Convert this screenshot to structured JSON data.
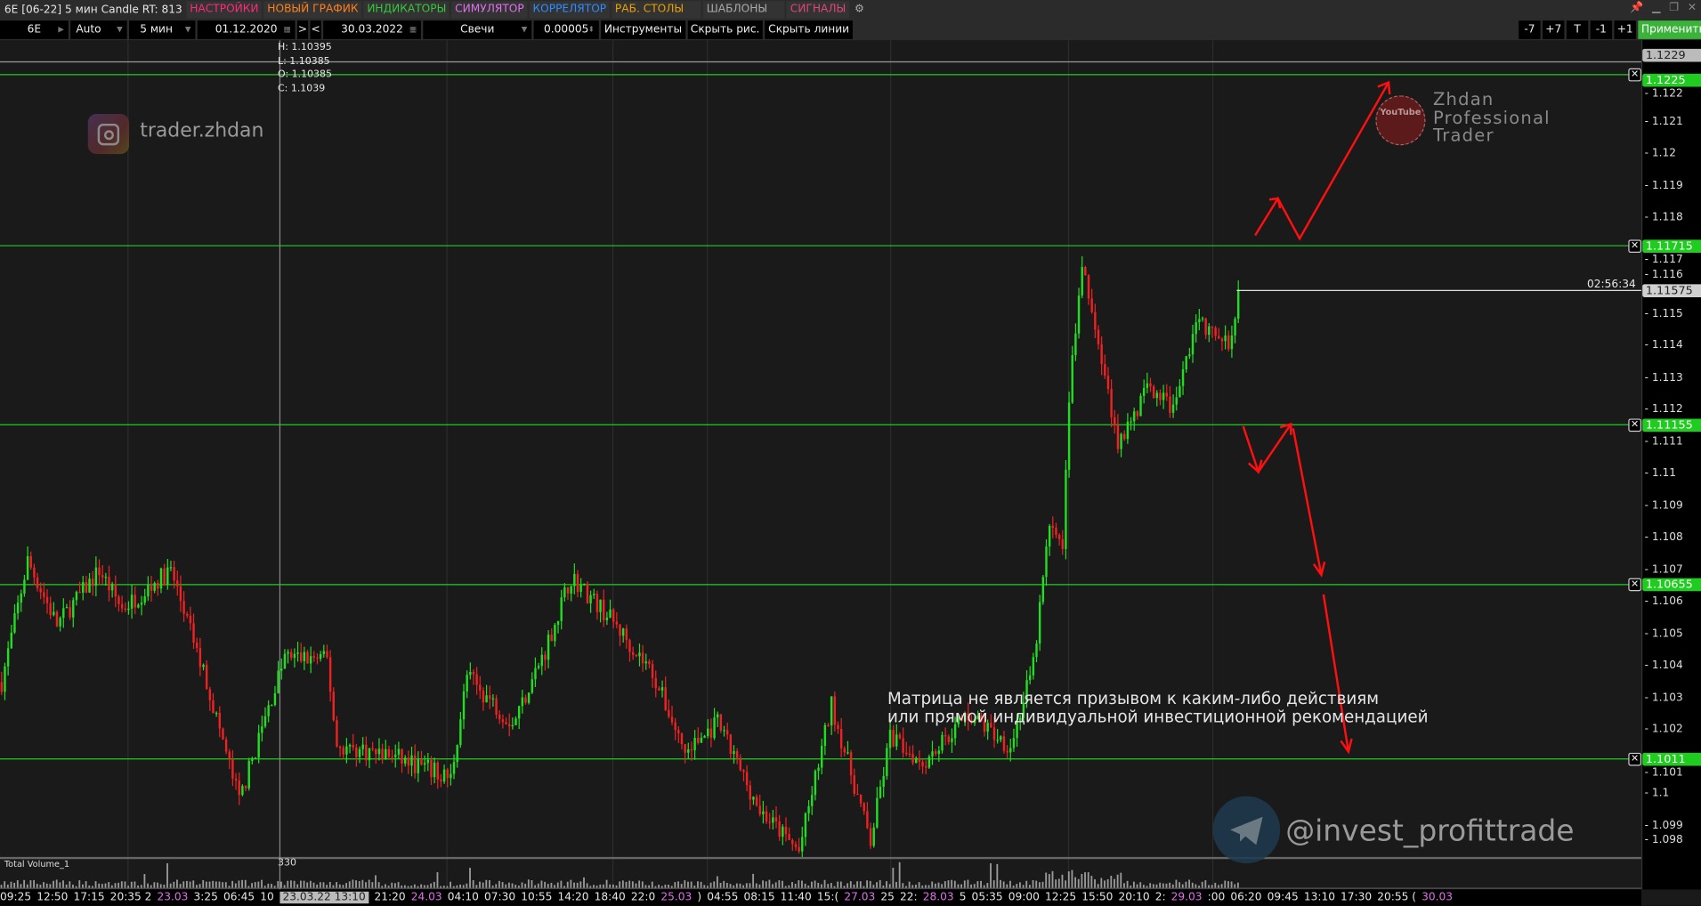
{
  "window": {
    "title": "6E [06-22] 5 мин Candle RT: 813"
  },
  "menu": [
    {
      "label": "НАСТРОЙКИ",
      "color": "#ff2a78"
    },
    {
      "label": "НОВЫЙ ГРАФИК",
      "color": "#ff7f1a"
    },
    {
      "label": "ИНДИКАТОРЫ",
      "color": "#34c83c"
    },
    {
      "label": "СИМУЛЯТОР",
      "color": "#e070f0"
    },
    {
      "label": "КОРРЕЛЯТОР",
      "color": "#2f8bff"
    },
    {
      "label": "РАБ. СТОЛЫ",
      "color": "#eaa000"
    },
    {
      "label": "ШАБЛОНЫ",
      "color": "#aaaaaa"
    },
    {
      "label": "СИГНАЛЫ",
      "color": "#e0457b"
    }
  ],
  "toolbar": {
    "symbol": "6E",
    "scale": "Auto",
    "timeframe": "5 мин",
    "date_from": "01.12.2020",
    "next": ">",
    "prev": "<",
    "date_to": "30.03.2022",
    "chart_type": "Свечи",
    "tick_size": "0.00005",
    "instruments": "Инструменты",
    "hide_drawings": "Скрыть рис.",
    "hide_lines": "Скрыть линии",
    "right_buttons": [
      "-7",
      "+7",
      "T",
      "-1",
      "+1"
    ],
    "apply": "Применить"
  },
  "ohlc": {
    "h": "H: 1.10395",
    "l": "L: 1.10385",
    "o": "O: 1.10385",
    "c": "C: 1.1039"
  },
  "price_axis": {
    "labels": [
      "1.122",
      "1.121",
      "1.12",
      "1.119",
      "1.118",
      "1.117",
      "1.116",
      "1.115",
      "1.114",
      "1.113",
      "1.112",
      "1.111",
      "1.11",
      "1.109",
      "1.108",
      "1.107",
      "1.106",
      "1.105",
      "1.104",
      "1.103",
      "1.102",
      "1.101",
      "1.1",
      "1.099",
      "1.098"
    ]
  },
  "levels": [
    {
      "price": "1.1229",
      "kind": "gray"
    },
    {
      "price": "1.1225",
      "kind": "green"
    },
    {
      "price": "1.11715",
      "kind": "green"
    },
    {
      "price": "1.11155",
      "kind": "green"
    },
    {
      "price": "1.10655",
      "kind": "green"
    },
    {
      "price": "1.1011",
      "kind": "green"
    }
  ],
  "current": {
    "price": "1.11575",
    "timer": "02:56:34"
  },
  "volume": {
    "label": "Total Volume_1",
    "value": "330"
  },
  "time_axis": [
    {
      "t": "09:25"
    },
    {
      "t": "12:50"
    },
    {
      "t": "17:15"
    },
    {
      "t": "20:35 2"
    },
    {
      "t": "23.03",
      "date": true
    },
    {
      "t": "3:25"
    },
    {
      "t": "06:45"
    },
    {
      "t": "10"
    },
    {
      "t": "23.03.22 13:10",
      "cur": true
    },
    {
      "t": "21:20"
    },
    {
      "t": "24.03",
      "date": true
    },
    {
      "t": "04:10"
    },
    {
      "t": "07:30"
    },
    {
      "t": "10:55"
    },
    {
      "t": "14:20"
    },
    {
      "t": "18:40"
    },
    {
      "t": "22:0"
    },
    {
      "t": "25.03",
      "date": true
    },
    {
      "t": ")"
    },
    {
      "t": "04:55"
    },
    {
      "t": "08:15"
    },
    {
      "t": "11:40"
    },
    {
      "t": "15:("
    },
    {
      "t": "27.03",
      "date": true
    },
    {
      "t": "25"
    },
    {
      "t": "22:"
    },
    {
      "t": "28.03",
      "date": true
    },
    {
      "t": "5"
    },
    {
      "t": "05:35"
    },
    {
      "t": "09:00"
    },
    {
      "t": "12:25"
    },
    {
      "t": "15:50"
    },
    {
      "t": "20:10"
    },
    {
      "t": "2:"
    },
    {
      "t": "29.03",
      "date": true
    },
    {
      "t": ":00"
    },
    {
      "t": "06:20"
    },
    {
      "t": "09:45"
    },
    {
      "t": "13:10"
    },
    {
      "t": "17:30"
    },
    {
      "t": "20:55 ("
    },
    {
      "t": "30.03",
      "date": true
    }
  ],
  "watermarks": {
    "instagram": "trader.zhdan",
    "youtube_logo": "YouTube",
    "youtube_text": [
      "Zhdan",
      "Professional",
      "Trader"
    ],
    "telegram": "@invest_profittrade"
  },
  "disclaimer": [
    "Матрица не является призывом к каким-либо действиям",
    "или прямой индивидуальной инвестиционной рекомендацией"
  ],
  "colors": {
    "up": "#22dd22",
    "down": "#ee2222",
    "level": "#22cc22",
    "arrow": "#ff1010"
  },
  "chart_data": {
    "type": "candlestick",
    "note_bars": "approximate close path, bar index vs price",
    "path": [
      [
        0,
        1.1035
      ],
      [
        8,
        1.1073
      ],
      [
        17,
        1.1053
      ],
      [
        30,
        1.107
      ],
      [
        37,
        1.1058
      ],
      [
        52,
        1.107
      ],
      [
        63,
        1.1035
      ],
      [
        73,
        1.0998
      ],
      [
        87,
        1.1043
      ],
      [
        100,
        1.1042
      ],
      [
        103,
        1.1015
      ],
      [
        120,
        1.1012
      ],
      [
        138,
        1.1005
      ],
      [
        143,
        1.1037
      ],
      [
        157,
        1.1022
      ],
      [
        167,
        1.1045
      ],
      [
        175,
        1.1068
      ],
      [
        187,
        1.1055
      ],
      [
        200,
        1.1038
      ],
      [
        210,
        1.1013
      ],
      [
        220,
        1.1022
      ],
      [
        233,
        1.0995
      ],
      [
        245,
        1.0982
      ],
      [
        255,
        1.1028
      ],
      [
        267,
        1.0985
      ],
      [
        273,
        1.1018
      ],
      [
        283,
        1.101
      ],
      [
        297,
        1.1025
      ],
      [
        310,
        1.1015
      ],
      [
        317,
        1.104
      ],
      [
        322,
        1.1085
      ],
      [
        326,
        1.1075
      ],
      [
        328,
        1.1125
      ],
      [
        332,
        1.1165
      ],
      [
        337,
        1.114
      ],
      [
        343,
        1.111
      ],
      [
        353,
        1.1128
      ],
      [
        360,
        1.112
      ],
      [
        367,
        1.1148
      ],
      [
        377,
        1.114
      ],
      [
        380,
        1.1157
      ]
    ]
  }
}
